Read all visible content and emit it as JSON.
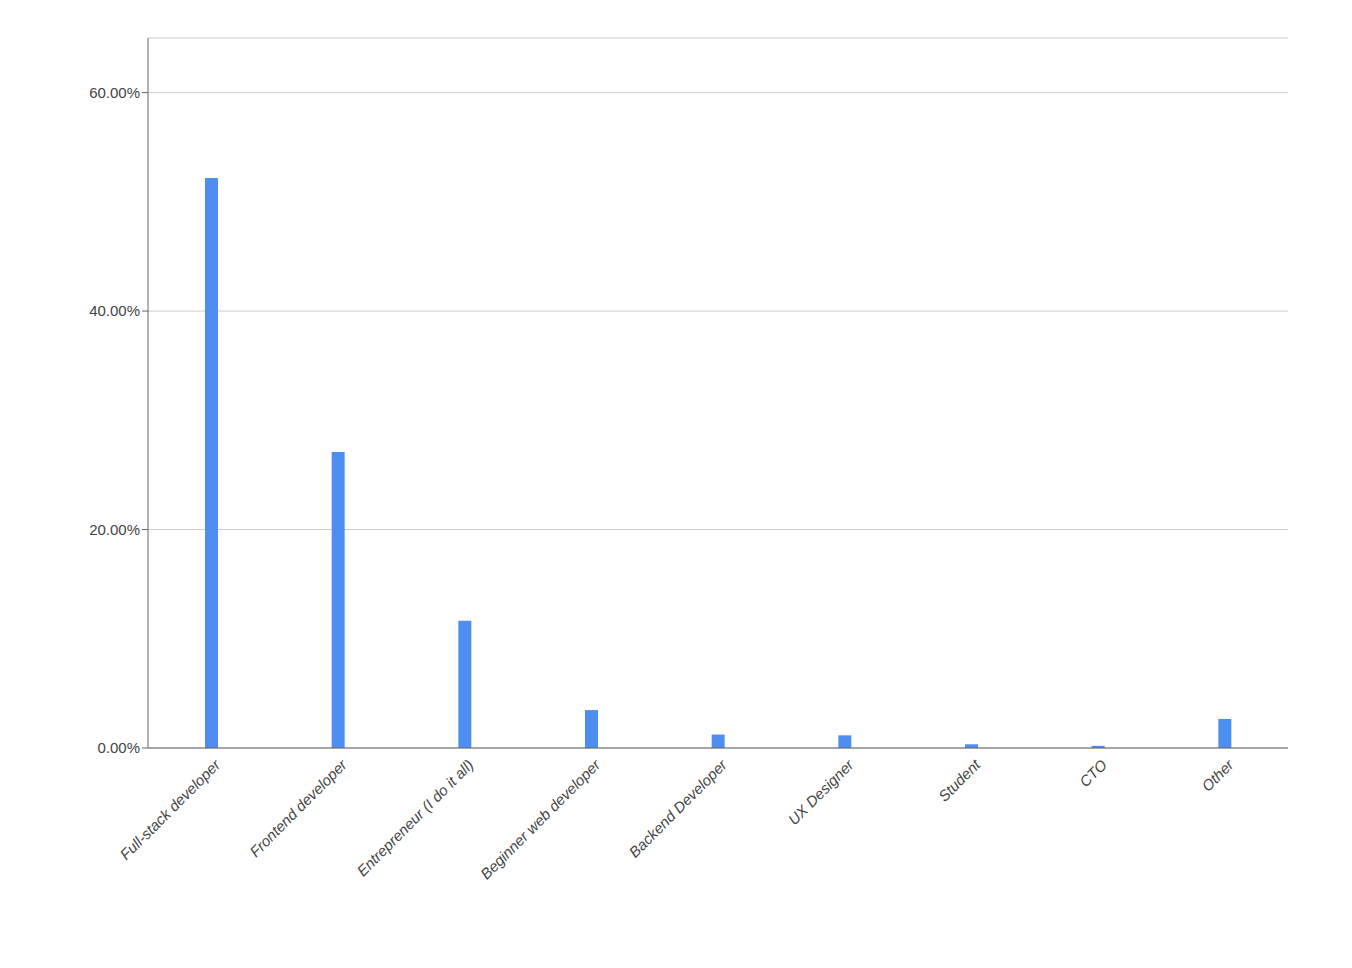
{
  "chart_data": {
    "type": "bar",
    "categories": [
      "Full-stack developer",
      "Frontend developer",
      "Entrepreneur (I do it all)",
      "Beginner web developer",
      "Backend Developer",
      "UX Designer",
      "Student",
      "CTO",
      "Other"
    ],
    "values": [
      52.18,
      27.11,
      11.65,
      3.47,
      1.23,
      1.16,
      0.34,
      0.2,
      2.66
    ],
    "color": "#4d8ef0",
    "ylim": [
      0,
      65
    ],
    "yticks": [
      {
        "value": 0,
        "label": "0.00%"
      },
      {
        "value": 20,
        "label": "20.00%"
      },
      {
        "value": 40,
        "label": "40.00%"
      },
      {
        "value": 60,
        "label": "60.00%"
      }
    ],
    "grid": true
  }
}
